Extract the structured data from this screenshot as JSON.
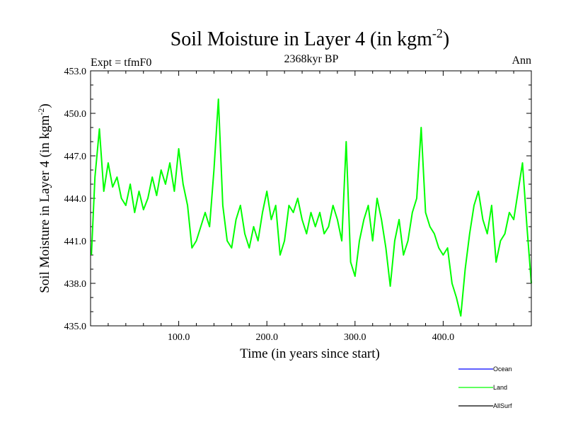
{
  "chart_data": {
    "type": "line",
    "title": "Soil Moisture in Layer 4 (in kgm",
    "title_sup": "-2",
    "title_end": ")",
    "subtitle": "2368kyr BP",
    "left_label": "Expt = tfmF0",
    "right_label": "Ann",
    "xlabel": "Time (in years since start)",
    "ylabel": "Soil Moisture in Layer 4 (in kgm",
    "ylabel_sup": "-2",
    "ylabel_end": ")",
    "xlim": [
      0,
      500
    ],
    "ylim": [
      435.0,
      453.0
    ],
    "x_ticks": [
      100,
      200,
      300,
      400
    ],
    "x_tick_labels": [
      "100.0",
      "200.0",
      "300.0",
      "400.0"
    ],
    "y_ticks": [
      435,
      438,
      441,
      444,
      447,
      450,
      453
    ],
    "y_tick_labels": [
      "435.0",
      "438.0",
      "441.0",
      "444.0",
      "447.0",
      "450.0",
      "453.0"
    ],
    "legend": [
      {
        "name": "Ocean",
        "color": "#0000ff"
      },
      {
        "name": "Land",
        "color": "#00ff00"
      },
      {
        "name": "AllSurf",
        "color": "#000000"
      }
    ],
    "series": [
      {
        "name": "Land",
        "color": "#00ff00",
        "x": [
          1,
          5,
          10,
          15,
          20,
          25,
          30,
          35,
          40,
          45,
          50,
          55,
          60,
          65,
          70,
          75,
          80,
          85,
          90,
          95,
          100,
          105,
          110,
          115,
          120,
          125,
          130,
          135,
          140,
          145,
          150,
          155,
          160,
          165,
          170,
          175,
          180,
          185,
          190,
          195,
          200,
          205,
          210,
          215,
          220,
          225,
          230,
          235,
          240,
          245,
          250,
          255,
          260,
          265,
          270,
          275,
          280,
          285,
          290,
          295,
          300,
          305,
          310,
          315,
          320,
          325,
          330,
          335,
          340,
          345,
          350,
          355,
          360,
          365,
          370,
          375,
          380,
          385,
          390,
          395,
          400,
          405,
          410,
          415,
          420,
          425,
          430,
          435,
          440,
          445,
          450,
          455,
          460,
          465,
          470,
          475,
          480,
          485,
          490,
          495,
          500
        ],
        "values": [
          440.0,
          445.5,
          448.9,
          444.5,
          446.5,
          444.8,
          445.5,
          444.0,
          443.5,
          445.0,
          443.0,
          444.5,
          443.2,
          444.0,
          445.5,
          444.2,
          446.0,
          445.0,
          446.5,
          444.5,
          447.5,
          445.0,
          443.5,
          440.5,
          441.0,
          442.0,
          443.0,
          442.0,
          446.0,
          451.0,
          443.5,
          441.0,
          440.5,
          442.5,
          443.5,
          441.5,
          440.5,
          442.0,
          441.0,
          443.0,
          444.5,
          442.5,
          443.5,
          440.0,
          441.0,
          443.5,
          443.0,
          444.0,
          442.5,
          441.5,
          443.0,
          442.0,
          443.0,
          441.5,
          442.0,
          443.5,
          442.5,
          441.0,
          448.0,
          439.5,
          438.5,
          441.0,
          442.5,
          443.5,
          441.0,
          444.0,
          442.5,
          440.5,
          437.8,
          441.0,
          442.5,
          440.0,
          441.0,
          443.0,
          444.0,
          449.0,
          443.0,
          442.0,
          441.5,
          440.5,
          440.0,
          440.5,
          438.0,
          437.0,
          435.7,
          439.0,
          441.5,
          443.5,
          444.5,
          442.5,
          441.5,
          443.5,
          439.5,
          441.0,
          441.5,
          443.0,
          442.5,
          444.5,
          446.5,
          442.0,
          438.0
        ]
      }
    ]
  }
}
